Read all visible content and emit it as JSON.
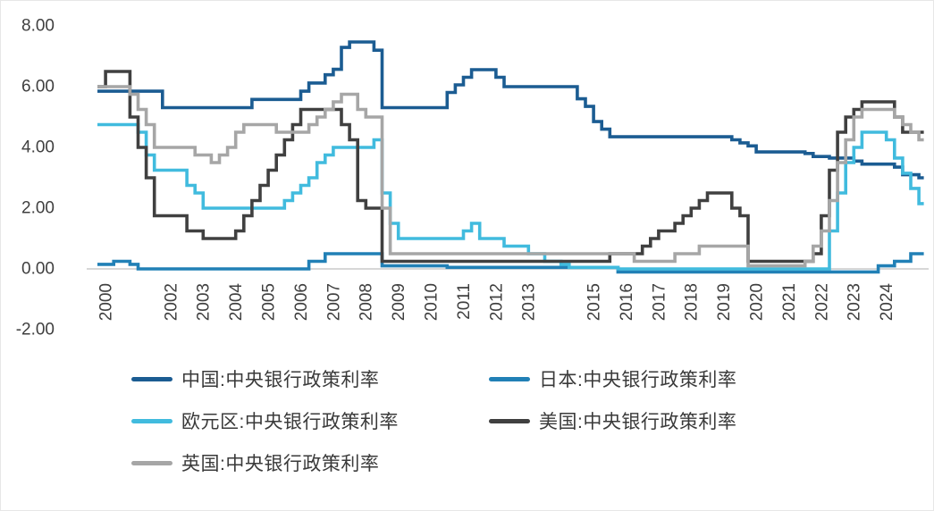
{
  "page": {
    "background": "#ffffff",
    "axis_color": "#bfbfbf",
    "text_color": "#3f3f3f"
  },
  "chart_data": {
    "type": "line",
    "title": "",
    "xlabel": "",
    "ylabel": "",
    "grid": false,
    "legend_position": "bottom",
    "ylim": [
      -2,
      8
    ],
    "y_ticks": [
      8,
      6,
      4,
      2,
      0,
      -2
    ],
    "y_tick_labels": [
      "8.00",
      "6.00",
      "4.00",
      "2.00",
      "0.00",
      "-2.00"
    ],
    "x_tick_years": [
      2000,
      2002,
      2003,
      2004,
      2005,
      2006,
      2007,
      2008,
      2009,
      2010,
      2011,
      2012,
      2013,
      2015,
      2016,
      2017,
      2018,
      2019,
      2020,
      2021,
      2022,
      2023,
      2024
    ],
    "x_start_year": 2000,
    "x_step_years": 0.25,
    "draw_order": [
      "china",
      "japan",
      "eurozone",
      "us",
      "uk"
    ],
    "series": [
      {
        "key": "china",
        "name": "中国:中央银行政策利率",
        "color": "#1B5C92",
        "values": [
          5.85,
          5.85,
          5.85,
          5.85,
          5.85,
          5.85,
          5.85,
          5.85,
          5.31,
          5.31,
          5.31,
          5.31,
          5.31,
          5.31,
          5.31,
          5.31,
          5.31,
          5.31,
          5.31,
          5.58,
          5.58,
          5.58,
          5.58,
          5.58,
          5.58,
          5.85,
          6.12,
          6.12,
          6.39,
          6.57,
          7.29,
          7.47,
          7.47,
          7.47,
          7.2,
          5.31,
          5.31,
          5.31,
          5.31,
          5.31,
          5.31,
          5.31,
          5.31,
          5.81,
          6.06,
          6.31,
          6.56,
          6.56,
          6.56,
          6.31,
          6.0,
          6.0,
          6.0,
          6.0,
          6.0,
          6.0,
          6.0,
          6.0,
          6.0,
          5.6,
          5.35,
          4.85,
          4.6,
          4.35,
          4.35,
          4.35,
          4.35,
          4.35,
          4.35,
          4.35,
          4.35,
          4.35,
          4.35,
          4.35,
          4.35,
          4.35,
          4.35,
          4.35,
          4.25,
          4.15,
          4.05,
          3.85,
          3.85,
          3.85,
          3.85,
          3.85,
          3.85,
          3.8,
          3.7,
          3.7,
          3.65,
          3.65,
          3.65,
          3.55,
          3.45,
          3.45,
          3.45,
          3.45,
          3.35,
          3.1,
          3.1,
          3.0
        ]
      },
      {
        "key": "japan",
        "name": "日本:中央银行政策利率",
        "color": "#2180B6",
        "values": [
          0.15,
          0.15,
          0.25,
          0.25,
          0.15,
          0.0,
          0.0,
          0.0,
          0.0,
          0.0,
          0.0,
          0.0,
          0.0,
          0.0,
          0.0,
          0.0,
          0.0,
          0.0,
          0.0,
          0.0,
          0.0,
          0.0,
          0.0,
          0.0,
          0.0,
          0.0,
          0.25,
          0.25,
          0.5,
          0.5,
          0.5,
          0.5,
          0.5,
          0.5,
          0.5,
          0.1,
          0.1,
          0.1,
          0.1,
          0.1,
          0.1,
          0.1,
          0.1,
          0.05,
          0.05,
          0.05,
          0.05,
          0.05,
          0.05,
          0.05,
          0.05,
          0.05,
          0.05,
          0.05,
          0.05,
          0.05,
          0.05,
          0.05,
          0.05,
          0.05,
          0.05,
          0.05,
          0.05,
          0.05,
          -0.1,
          -0.1,
          -0.1,
          -0.1,
          -0.1,
          -0.1,
          -0.1,
          -0.1,
          -0.1,
          -0.1,
          -0.1,
          -0.1,
          -0.1,
          -0.1,
          -0.1,
          -0.1,
          -0.1,
          -0.1,
          -0.1,
          -0.1,
          -0.1,
          -0.1,
          -0.1,
          -0.1,
          -0.1,
          -0.1,
          -0.1,
          -0.1,
          -0.1,
          -0.1,
          -0.1,
          -0.1,
          0.1,
          0.1,
          0.25,
          0.25,
          0.5,
          0.5
        ]
      },
      {
        "key": "eurozone",
        "name": "欧元区:中央银行政策利率",
        "color": "#41BBDE",
        "values": [
          4.75,
          4.75,
          4.75,
          4.75,
          4.75,
          4.5,
          3.75,
          3.25,
          3.25,
          3.25,
          3.25,
          2.75,
          2.5,
          2.0,
          2.0,
          2.0,
          2.0,
          2.0,
          2.0,
          2.0,
          2.0,
          2.0,
          2.0,
          2.25,
          2.5,
          2.75,
          3.0,
          3.5,
          3.75,
          4.0,
          4.0,
          4.0,
          4.0,
          4.0,
          4.25,
          2.5,
          1.5,
          1.0,
          1.0,
          1.0,
          1.0,
          1.0,
          1.0,
          1.0,
          1.0,
          1.25,
          1.5,
          1.0,
          1.0,
          1.0,
          0.75,
          0.75,
          0.75,
          0.5,
          0.5,
          0.25,
          0.25,
          0.15,
          0.05,
          0.05,
          0.05,
          0.05,
          0.05,
          0.05,
          0.0,
          0.0,
          0.0,
          0.0,
          0.0,
          0.0,
          0.0,
          0.0,
          0.0,
          0.0,
          0.0,
          0.0,
          0.0,
          0.0,
          0.0,
          0.0,
          0.0,
          0.0,
          0.0,
          0.0,
          0.0,
          0.0,
          0.0,
          0.0,
          0.0,
          0.0,
          1.25,
          2.5,
          3.5,
          4.0,
          4.5,
          4.5,
          4.5,
          4.25,
          3.65,
          3.15,
          2.65,
          2.15
        ]
      },
      {
        "key": "us",
        "name": "美国:中央银行政策利率",
        "color": "#404040",
        "values": [
          6.0,
          6.5,
          6.5,
          6.5,
          5.0,
          4.0,
          3.0,
          1.75,
          1.75,
          1.75,
          1.75,
          1.25,
          1.25,
          1.0,
          1.0,
          1.0,
          1.0,
          1.25,
          1.75,
          2.25,
          2.75,
          3.25,
          3.75,
          4.25,
          4.75,
          5.25,
          5.25,
          5.25,
          5.25,
          5.25,
          4.75,
          4.25,
          2.25,
          2.0,
          2.0,
          0.25,
          0.25,
          0.25,
          0.25,
          0.25,
          0.25,
          0.25,
          0.25,
          0.25,
          0.25,
          0.25,
          0.25,
          0.25,
          0.25,
          0.25,
          0.25,
          0.25,
          0.25,
          0.25,
          0.25,
          0.25,
          0.25,
          0.25,
          0.25,
          0.25,
          0.25,
          0.25,
          0.25,
          0.5,
          0.5,
          0.5,
          0.5,
          0.75,
          1.0,
          1.25,
          1.25,
          1.5,
          1.75,
          2.0,
          2.25,
          2.5,
          2.5,
          2.5,
          2.0,
          1.75,
          0.25,
          0.25,
          0.25,
          0.25,
          0.25,
          0.25,
          0.25,
          0.25,
          0.5,
          1.75,
          3.25,
          4.5,
          5.0,
          5.25,
          5.5,
          5.5,
          5.5,
          5.5,
          5.0,
          4.5,
          4.5,
          4.5
        ]
      },
      {
        "key": "uk",
        "name": "英国:中央银行政策利率",
        "color": "#A6A6A6",
        "values": [
          6.0,
          6.0,
          6.0,
          6.0,
          5.75,
          5.25,
          4.75,
          4.0,
          4.0,
          4.0,
          4.0,
          4.0,
          3.75,
          3.75,
          3.5,
          3.75,
          4.0,
          4.5,
          4.75,
          4.75,
          4.75,
          4.75,
          4.5,
          4.5,
          4.5,
          4.5,
          4.75,
          5.0,
          5.25,
          5.5,
          5.75,
          5.75,
          5.25,
          5.0,
          5.0,
          2.0,
          0.5,
          0.5,
          0.5,
          0.5,
          0.5,
          0.5,
          0.5,
          0.5,
          0.5,
          0.5,
          0.5,
          0.5,
          0.5,
          0.5,
          0.5,
          0.5,
          0.5,
          0.5,
          0.5,
          0.5,
          0.5,
          0.5,
          0.5,
          0.5,
          0.5,
          0.5,
          0.5,
          0.5,
          0.5,
          0.5,
          0.25,
          0.25,
          0.25,
          0.25,
          0.25,
          0.5,
          0.5,
          0.5,
          0.75,
          0.75,
          0.75,
          0.75,
          0.75,
          0.75,
          0.1,
          0.1,
          0.1,
          0.1,
          0.1,
          0.1,
          0.1,
          0.25,
          0.75,
          1.25,
          2.25,
          3.5,
          4.25,
          5.0,
          5.25,
          5.25,
          5.25,
          5.25,
          5.0,
          4.75,
          4.5,
          4.25
        ]
      }
    ]
  }
}
